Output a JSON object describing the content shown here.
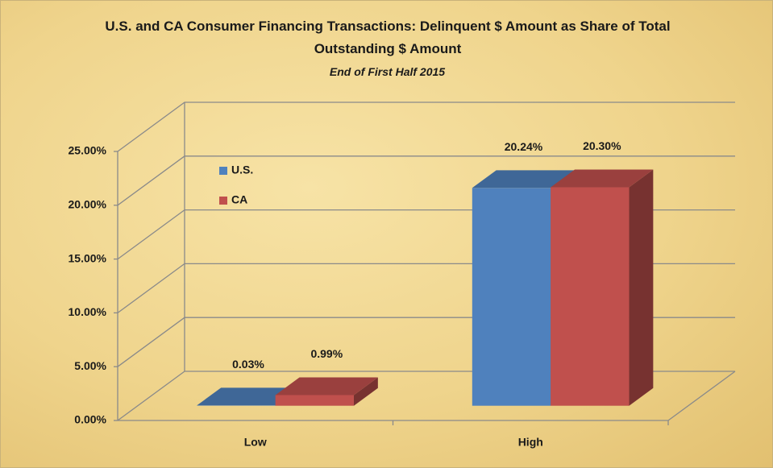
{
  "chart_data": {
    "type": "bar3d",
    "title": "U.S. and CA Consumer Financing Transactions: Delinquent $ Amount as Share of Total Outstanding $ Amount",
    "subtitle": "End of First Half 2015",
    "categories": [
      "Low",
      "High"
    ],
    "series": [
      {
        "name": "U.S.",
        "color": "#4f81bd",
        "values": [
          0.03,
          20.24
        ],
        "value_labels": [
          "0.03%",
          "20.24%"
        ]
      },
      {
        "name": "CA",
        "color": "#c0504d",
        "values": [
          0.99,
          20.3
        ],
        "value_labels": [
          "0.99%",
          "20.30%"
        ]
      }
    ],
    "ylim": [
      0,
      25
    ],
    "yticks": [
      {
        "value": 0,
        "label": "0.00%"
      },
      {
        "value": 5,
        "label": "5.00%"
      },
      {
        "value": 10,
        "label": "10.00%"
      },
      {
        "value": 15,
        "label": "15.00%"
      },
      {
        "value": 20,
        "label": "20.00%"
      },
      {
        "value": 25,
        "label": "25.00%"
      }
    ],
    "grid": true,
    "legend": "upper-left"
  }
}
